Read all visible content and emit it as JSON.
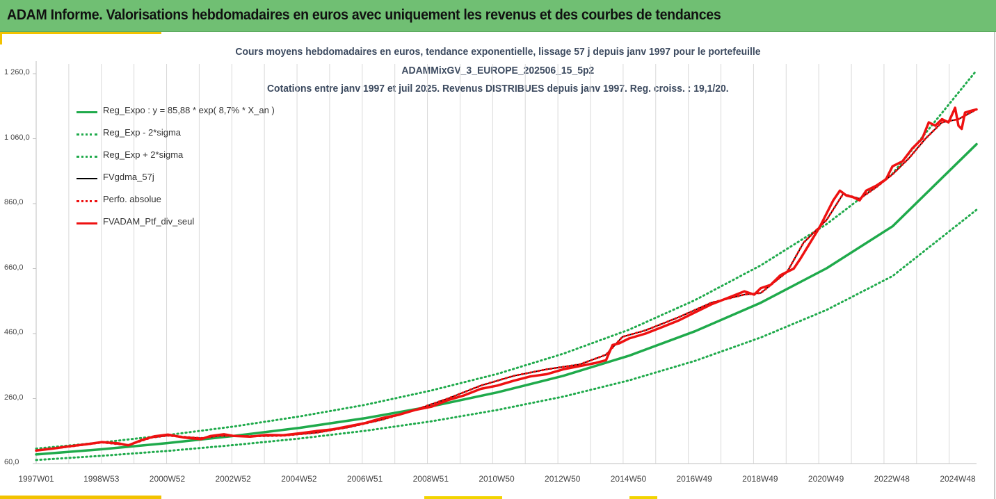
{
  "banner": {
    "title": "ADAM Informe. Valorisations hebdomadaires en euros avec uniquement les revenus et des courbes de tendances"
  },
  "chart_data": {
    "type": "line",
    "title_lines": [
      "Cours moyens hebdomadaires  en euros, tendance exponentielle, lissage 57 j depuis janv 1997 pour le portefeuille",
      "ADAMMixGV_3_EUROPE_202506_15_5p2",
      "Cotations  entre janv 1997 et juil 2025. Revenus DISTRIBUES depuis janv 1997. Reg. croiss. : 19,1/20."
    ],
    "ylim": [
      60,
      1290
    ],
    "y_ticks": [
      "60,0",
      "260,0",
      "460,0",
      "660,0",
      "860,0",
      "1 060,0",
      "1 260,0"
    ],
    "y_tick_values": [
      60,
      260,
      460,
      660,
      860,
      1060,
      1260
    ],
    "xlim": [
      1997.0,
      2025.55
    ],
    "x_ticks": [
      "1997W01",
      "1998W53",
      "2000W52",
      "2002W52",
      "2004W52",
      "2006W51",
      "2008W51",
      "2010W50",
      "2012W50",
      "2014W50",
      "2016W49",
      "2018W49",
      "2020W49",
      "2022W48",
      "2024W48"
    ],
    "x_tick_values": [
      1997.0,
      1998.98,
      2000.98,
      2002.98,
      2004.98,
      2006.98,
      2008.98,
      2010.98,
      2012.98,
      2014.98,
      2016.98,
      2018.98,
      2020.98,
      2022.98,
      2024.98
    ],
    "grid": "vertical",
    "legend_position": "top-left",
    "colors": {
      "green": "#1faa4b",
      "black": "#000000",
      "red": "#ee1111",
      "grid": "#d9d9d9",
      "axis": "#bfbfbf"
    },
    "series": [
      {
        "name": "Reg_Expo : y = 85,88 * exp( 8,7% *  X_an )",
        "style": "solid",
        "color": "#1faa4b",
        "x": [
          1997,
          1999,
          2001,
          2003,
          2005,
          2007,
          2009,
          2011,
          2013,
          2015,
          2017,
          2019,
          2021,
          2023,
          2025.55
        ],
        "y": [
          88,
          104,
          123,
          145,
          170,
          200,
          236,
          279,
          330,
          392,
          467,
          555,
          661,
          790,
          1043
        ]
      },
      {
        "name": "Reg_Exp - 2*sigma",
        "style": "dotted",
        "color": "#1faa4b",
        "x": [
          1997,
          1999,
          2001,
          2003,
          2005,
          2007,
          2009,
          2011,
          2013,
          2015,
          2017,
          2019,
          2021,
          2023,
          2025.55
        ],
        "y": [
          71,
          84,
          99,
          117,
          137,
          161,
          190,
          225,
          266,
          316,
          376,
          448,
          533,
          637,
          841
        ]
      },
      {
        "name": "Reg_Exp + 2*sigma",
        "style": "dotted",
        "color": "#1faa4b",
        "x": [
          1997,
          1999,
          2001,
          2003,
          2005,
          2007,
          2009,
          2011,
          2013,
          2015,
          2017,
          2019,
          2021,
          2023,
          2025.55
        ],
        "y": [
          106,
          125,
          148,
          174,
          205,
          241,
          285,
          336,
          398,
          472,
          563,
          670,
          797,
          952,
          1270
        ]
      },
      {
        "name": "FVgdma_57j",
        "style": "solid",
        "color": "#000000",
        "x": [
          1997,
          1998,
          1999,
          1999.8,
          2000.5,
          2001,
          2002,
          2002.6,
          2003.5,
          2004.5,
          2005.5,
          2006.5,
          2007.5,
          2008.5,
          2009.5,
          2010.5,
          2011.5,
          2012.5,
          2013.5,
          2014.3,
          2014.8,
          2015.5,
          2016.5,
          2017.5,
          2018.5,
          2019,
          2019.8,
          2020.3,
          2021,
          2021.5,
          2022,
          2022.5,
          2023,
          2023.5,
          2024,
          2024.5,
          2025,
          2025.55
        ],
        "y": [
          100,
          112,
          125,
          117,
          140,
          146,
          138,
          146,
          144,
          146,
          155,
          172,
          195,
          225,
          260,
          300,
          330,
          350,
          365,
          395,
          450,
          470,
          510,
          555,
          580,
          585,
          650,
          740,
          810,
          890,
          875,
          910,
          950,
          1000,
          1060,
          1110,
          1120,
          1150
        ]
      },
      {
        "name": "Perfo. absolue",
        "style": "dotted",
        "color": "#ee1111",
        "x": [
          1997,
          1998,
          1999,
          1999.8,
          2000.5,
          2001,
          2002,
          2002.6,
          2003.5,
          2004.5,
          2005.5,
          2006.5,
          2007.5,
          2008.5,
          2009.5,
          2010.5,
          2011.5,
          2012.5,
          2013.5,
          2014.3,
          2014.8,
          2015.5,
          2016.5,
          2017.5,
          2018.5,
          2019,
          2019.8,
          2020.3,
          2021,
          2021.5,
          2022,
          2022.5,
          2023,
          2023.5,
          2024,
          2024.5,
          2025,
          2025.55
        ],
        "y": [
          100,
          112,
          125,
          117,
          140,
          146,
          138,
          146,
          144,
          146,
          155,
          172,
          195,
          225,
          260,
          300,
          330,
          350,
          365,
          395,
          450,
          470,
          510,
          555,
          580,
          585,
          650,
          740,
          810,
          890,
          875,
          910,
          950,
          1000,
          1060,
          1110,
          1120,
          1150
        ]
      },
      {
        "name": "FVADAM_Ptf_div_seul",
        "style": "solid",
        "color": "#ee1111",
        "x": [
          1997,
          1997.5,
          1998,
          1998.5,
          1999,
          1999.5,
          1999.8,
          2000.2,
          2000.6,
          2001,
          2001.5,
          2002,
          2002.3,
          2002.7,
          2003,
          2003.5,
          2004,
          2004.5,
          2005,
          2005.5,
          2006,
          2006.5,
          2007,
          2007.5,
          2008,
          2008.5,
          2009,
          2009.5,
          2010,
          2010.5,
          2011,
          2011.5,
          2012,
          2012.5,
          2013,
          2013.5,
          2014,
          2014.3,
          2014.5,
          2014.7,
          2015,
          2015.5,
          2016,
          2016.5,
          2017,
          2017.5,
          2018,
          2018.5,
          2018.8,
          2019,
          2019.3,
          2019.6,
          2020,
          2020.2,
          2020.5,
          2020.8,
          2021,
          2021.2,
          2021.4,
          2021.6,
          2021.8,
          2022,
          2022.2,
          2022.5,
          2022.8,
          2023,
          2023.3,
          2023.6,
          2023.9,
          2024.1,
          2024.3,
          2024.5,
          2024.7,
          2024.9,
          2025.0,
          2025.1,
          2025.2,
          2025.35,
          2025.55
        ],
        "y": [
          100,
          106,
          113,
          119,
          126,
          122,
          116,
          132,
          144,
          149,
          140,
          135,
          145,
          150,
          145,
          143,
          148,
          147,
          153,
          160,
          165,
          175,
          185,
          200,
          210,
          225,
          235,
          255,
          270,
          290,
          300,
          315,
          328,
          335,
          350,
          360,
          370,
          378,
          425,
          430,
          445,
          460,
          480,
          500,
          525,
          550,
          570,
          590,
          580,
          600,
          610,
          640,
          660,
          690,
          740,
          790,
          830,
          870,
          900,
          885,
          880,
          870,
          900,
          915,
          935,
          975,
          990,
          1030,
          1060,
          1110,
          1100,
          1120,
          1110,
          1155,
          1100,
          1090,
          1140,
          1145,
          1150
        ]
      }
    ]
  }
}
